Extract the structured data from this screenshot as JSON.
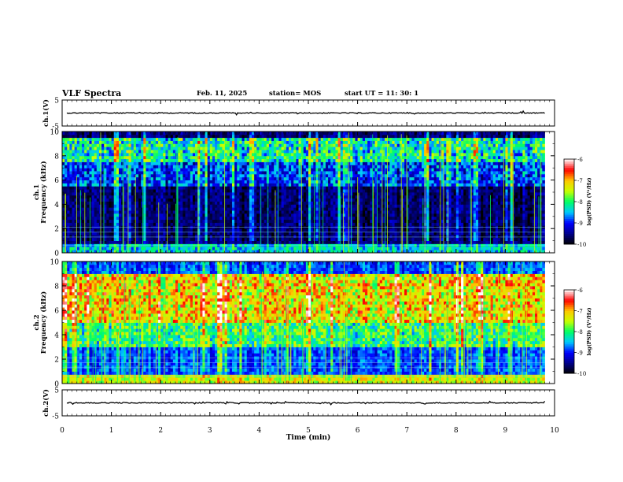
{
  "header": {
    "title": "VLF Spectra",
    "date": "Feb. 11, 2025",
    "station": "station= MOS",
    "start": "start  UT =   11: 30: 1"
  },
  "colorbar": {
    "label": "log(PSD) (V²/Hz)",
    "ticks": [
      -10,
      -9,
      -8,
      -7,
      -6
    ],
    "range": [
      -10,
      -6
    ],
    "colors": [
      "#000000",
      "#00008b",
      "#0000ff",
      "#00c8ff",
      "#00ff64",
      "#c8ff00",
      "#ffc800",
      "#ff0000",
      "#ffffff"
    ]
  },
  "chart_data": [
    {
      "type": "line",
      "name": "ch1-waveform",
      "ylabel": "ch.1(V)",
      "ylim": [
        -5,
        5
      ],
      "yticks": [
        -5,
        5
      ],
      "xlim": [
        0,
        10
      ],
      "baseline": 0
    },
    {
      "type": "heatmap",
      "name": "ch1-spectrogram",
      "ylabel_lines": [
        "ch.1",
        "Frequency (kHz)"
      ],
      "ylim": [
        0,
        10
      ],
      "yticks": [
        0,
        2,
        4,
        6,
        8,
        10
      ],
      "xlim": [
        0,
        9.8
      ],
      "background_log_psd": -9.6,
      "band_log_psd": -8.2,
      "band_khz": [
        7.5,
        9.5
      ],
      "low_band_khz": [
        0,
        0.8
      ]
    },
    {
      "type": "heatmap",
      "name": "ch2-spectrogram",
      "ylabel_lines": [
        "ch.2",
        "Frequency (kHz)"
      ],
      "ylim": [
        0,
        10
      ],
      "yticks": [
        0,
        2,
        4,
        6,
        8,
        10
      ],
      "xlim": [
        0,
        9.8
      ],
      "background_log_psd": -8.8,
      "band_log_psd": -7.2,
      "band_khz": [
        5,
        9
      ],
      "low_band_khz": [
        0,
        0.8
      ]
    },
    {
      "type": "line",
      "name": "ch2-waveform",
      "ylabel": "ch.2(V)",
      "ylim": [
        -5,
        5
      ],
      "yticks": [
        -5,
        5
      ],
      "xlim": [
        0,
        10
      ],
      "baseline": 0
    }
  ],
  "xaxis": {
    "label": "Time (min)",
    "ticks": [
      0,
      1,
      2,
      3,
      4,
      5,
      6,
      7,
      8,
      9,
      10
    ],
    "range": [
      0,
      10
    ]
  }
}
